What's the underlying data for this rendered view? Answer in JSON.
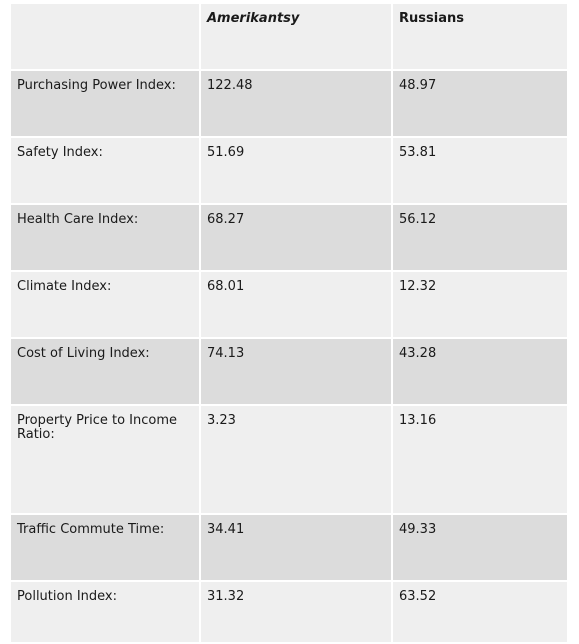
{
  "table": {
    "headers": [
      "",
      "Amerikantsy",
      "Russians"
    ],
    "rows": [
      {
        "label": "Purchasing Power Index:",
        "a": "122.48",
        "b": "48.97"
      },
      {
        "label": "Safety Index:",
        "a": "51.69",
        "b": "53.81"
      },
      {
        "label": "Health Care Index:",
        "a": "68.27",
        "b": "56.12"
      },
      {
        "label": "Climate Index:",
        "a": "68.01",
        "b": "12.32"
      },
      {
        "label": "Cost of Living Index:",
        "a": "74.13",
        "b": "43.28"
      },
      {
        "label": "Property Price to Income Ratio:",
        "a": "3.23",
        "b": "13.16"
      },
      {
        "label": "Traffic Commute Time:",
        "a": "34.41",
        "b": "49.33"
      },
      {
        "label": "Pollution Index:",
        "a": "31.32",
        "b": "63.52"
      }
    ]
  }
}
